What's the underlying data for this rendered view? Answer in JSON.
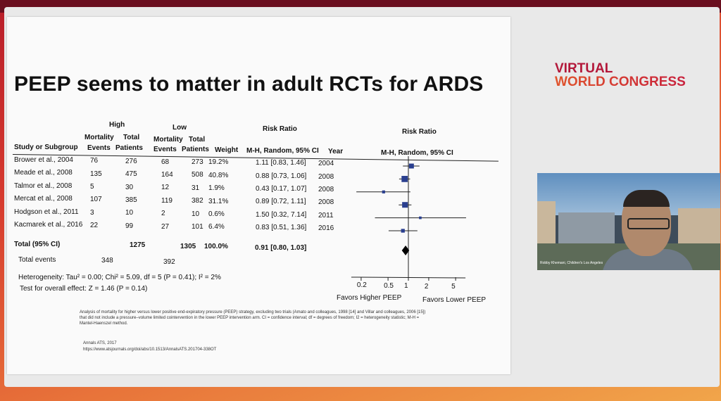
{
  "slide": {
    "title": "PEEP seems to matter in adult RCTs for ARDS",
    "logo_line1": "VIRTUAL",
    "logo_line2": "WORLD CONGRESS",
    "video_caption": "Robby Khemani, Children's Los Angeles"
  },
  "table": {
    "group_high": "High",
    "group_low": "Low",
    "col_mortality": "Mortality",
    "col_total": "Total",
    "col_study": "Study or Subgroup",
    "col_events": "Events",
    "col_patients": "Patients",
    "col_weight": "Weight",
    "col_rr": "Risk Ratio",
    "col_method": "M-H, Random, 95% CI",
    "col_year": "Year",
    "plot_rr": "Risk Ratio",
    "plot_method": "M-H, Random, 95% CI",
    "rows": [
      {
        "study": "Brower et al., 2004",
        "he": "76",
        "ht": "276",
        "le": "68",
        "lt": "273",
        "w": "19.2%",
        "ci": "1.11 [0.83, 1.46]",
        "year": "2004"
      },
      {
        "study": "Meade et al., 2008",
        "he": "135",
        "ht": "475",
        "le": "164",
        "lt": "508",
        "w": "40.8%",
        "ci": "0.88 [0.73, 1.06]",
        "year": "2008"
      },
      {
        "study": "Talmor et al., 2008",
        "he": "5",
        "ht": "30",
        "le": "12",
        "lt": "31",
        "w": "1.9%",
        "ci": "0.43 [0.17, 1.07]",
        "year": "2008"
      },
      {
        "study": "Mercat et al., 2008",
        "he": "107",
        "ht": "385",
        "le": "119",
        "lt": "382",
        "w": "31.1%",
        "ci": "0.89 [0.72, 1.11]",
        "year": "2008"
      },
      {
        "study": "Hodgson et al., 2011",
        "he": "3",
        "ht": "10",
        "le": "2",
        "lt": "10",
        "w": "0.6%",
        "ci": "1.50 [0.32, 7.14]",
        "year": "2011"
      },
      {
        "study": "Kacmarek et al., 2016",
        "he": "22",
        "ht": "99",
        "le": "27",
        "lt": "101",
        "w": "6.4%",
        "ci": "0.83 [0.51, 1.36]",
        "year": "2016"
      }
    ],
    "total_label": "Total (95% CI)",
    "total_ht": "1275",
    "total_lt": "1305",
    "total_w": "100.0%",
    "total_ci": "0.91 [0.80, 1.03]",
    "total_events_label": "Total events",
    "total_he": "348",
    "total_le": "392",
    "heterogeneity": "Heterogeneity: Tau² = 0.00; Chi² = 5.09, df = 5 (P = 0.41); I² = 2%",
    "overall": "Test for overall effect: Z = 1.46 (P = 0.14)",
    "axis_ticks": [
      "0.2",
      "0.5",
      "1",
      "2",
      "5"
    ],
    "favors_left": "Favors Higher PEEP",
    "favors_right": "Favors Lower PEEP",
    "note": "Analysis of mortality for higher versus lower positive end-expiratory pressure (PEEP) strategy, excluding two trials (Amato and colleagues, 1998 [14] and Villar and colleagues, 2006 [15]) that did not include a pressure–volume limited cointervention in the lower PEEP intervention arm. CI = confidence interval; df = degrees of freedom; I2 = heterogeneity statistic; M-H = Mantel-Haenszel method.",
    "source1": "Annals ATS, 2017",
    "source2": "https://www.atsjournals.org/doi/abs/10.1513/AnnalsATS.201704-338OT"
  },
  "chart_data": {
    "type": "forest",
    "scale": "log",
    "xlim": [
      0.2,
      5
    ],
    "null_value": 1,
    "studies": [
      {
        "name": "Brower et al., 2004",
        "rr": 1.11,
        "lo": 0.83,
        "hi": 1.46,
        "weight": 19.2
      },
      {
        "name": "Meade et al., 2008",
        "rr": 0.88,
        "lo": 0.73,
        "hi": 1.06,
        "weight": 40.8
      },
      {
        "name": "Talmor et al., 2008",
        "rr": 0.43,
        "lo": 0.17,
        "hi": 1.07,
        "weight": 1.9
      },
      {
        "name": "Mercat et al., 2008",
        "rr": 0.89,
        "lo": 0.72,
        "hi": 1.11,
        "weight": 31.1
      },
      {
        "name": "Hodgson et al., 2011",
        "rr": 1.5,
        "lo": 0.32,
        "hi": 7.14,
        "weight": 0.6
      },
      {
        "name": "Kacmarek et al., 2016",
        "rr": 0.83,
        "lo": 0.51,
        "hi": 1.36,
        "weight": 6.4
      }
    ],
    "pooled": {
      "rr": 0.91,
      "lo": 0.8,
      "hi": 1.03
    },
    "colors": {
      "square": "#2a3f8f",
      "diamond": "#000000"
    }
  }
}
